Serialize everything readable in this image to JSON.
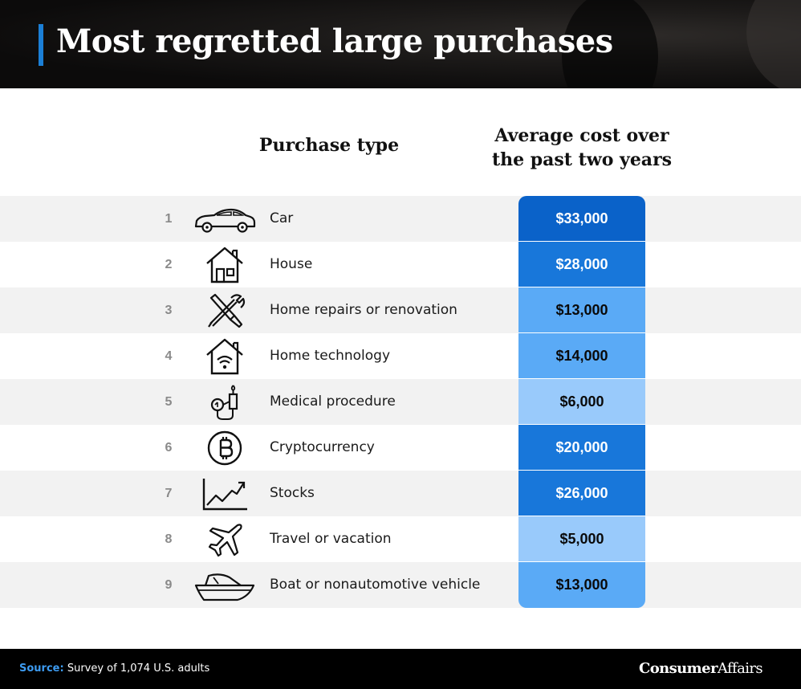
{
  "title": "Most regretted large purchases",
  "columns": {
    "purchase_type": "Purchase type",
    "cost_line1": "Average cost over",
    "cost_line2": "the past two years"
  },
  "chart_data": {
    "type": "table",
    "title": "Most regretted large purchases",
    "columns": [
      "Purchase type",
      "Average cost over the past two years"
    ],
    "rows": [
      {
        "rank": "1",
        "label": "Car",
        "cost": "$33,000",
        "value": 33000,
        "icon": "car-icon"
      },
      {
        "rank": "2",
        "label": "House",
        "cost": "$28,000",
        "value": 28000,
        "icon": "house-icon"
      },
      {
        "rank": "3",
        "label": "Home repairs or renovation",
        "cost": "$13,000",
        "value": 13000,
        "icon": "tools-icon"
      },
      {
        "rank": "4",
        "label": "Home technology",
        "cost": "$14,000",
        "value": 14000,
        "icon": "smart-home-icon"
      },
      {
        "rank": "5",
        "label": "Medical procedure",
        "cost": "$6,000",
        "value": 6000,
        "icon": "medical-device-icon"
      },
      {
        "rank": "6",
        "label": "Cryptocurrency",
        "cost": "$20,000",
        "value": 20000,
        "icon": "bitcoin-icon"
      },
      {
        "rank": "7",
        "label": "Stocks",
        "cost": "$26,000",
        "value": 26000,
        "icon": "stock-chart-icon"
      },
      {
        "rank": "8",
        "label": "Travel or vacation",
        "cost": "$5,000",
        "value": 5000,
        "icon": "airplane-icon"
      },
      {
        "rank": "9",
        "label": "Boat or nonautomotive vehicle",
        "cost": "$13,000",
        "value": 13000,
        "icon": "boat-icon"
      }
    ]
  },
  "colors": {
    "accent": "#1b7fd6",
    "header_bg": "#0c0b0b",
    "row_alt": "#f2f2f2",
    "source_label": "#3d9bf0",
    "cost_scale": [
      "#0a62c9",
      "#1877da",
      "#5aaaf6",
      "#99cafb"
    ]
  },
  "footer": {
    "source_label": "Source:",
    "source_text": "Survey of 1,074 U.S. adults",
    "brand_bold": "Consumer",
    "brand_regular": "Affairs"
  }
}
